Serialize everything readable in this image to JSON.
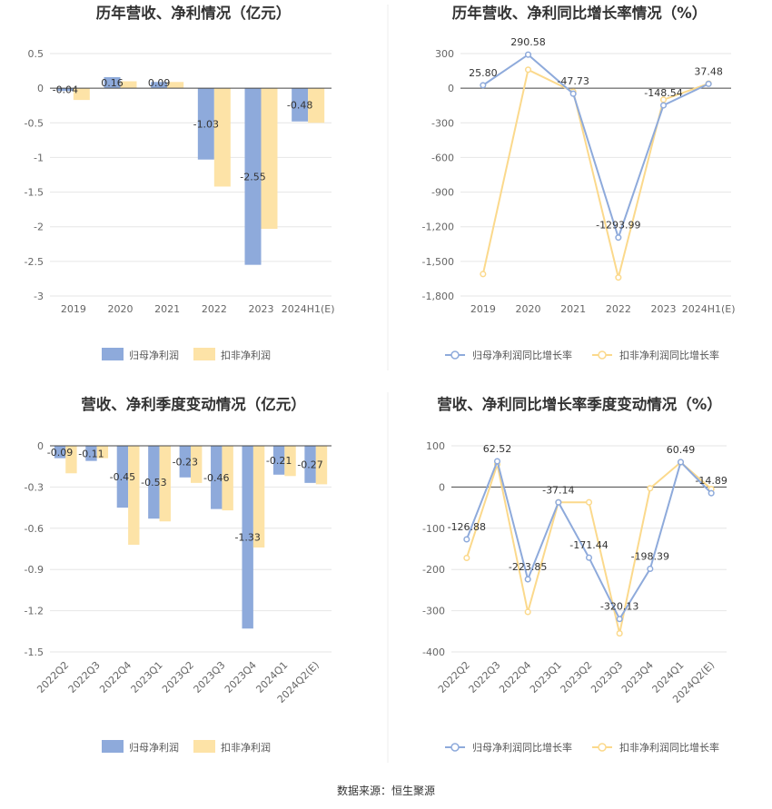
{
  "source": "数据来源：恒生聚源",
  "colors": {
    "primary": "#8eaadb",
    "secondary": "#fde3a7",
    "grid": "#e6e6e6",
    "axis": "#444444"
  },
  "chart_data": [
    {
      "type": "bar",
      "title": "历年营收、净利情况（亿元）",
      "categories": [
        "2019",
        "2020",
        "2021",
        "2022",
        "2023",
        "2024H1(E)"
      ],
      "ylim": [
        -3,
        0.5
      ],
      "yticks": [
        "0.5",
        "0",
        "-0.5",
        "-1",
        "-1.5",
        "-2",
        "-2.5",
        "-3"
      ],
      "ytick_values": [
        0.5,
        0,
        -0.5,
        -1,
        -1.5,
        -2,
        -2.5,
        -3
      ],
      "series": [
        {
          "name": "归母净利润",
          "values": [
            -0.04,
            0.16,
            0.09,
            -1.03,
            -2.55,
            -0.48
          ],
          "labels": [
            "-0.04",
            "0.16",
            "0.09",
            "-1.03",
            "-2.55",
            "-0.48"
          ]
        },
        {
          "name": "扣非净利润",
          "values": [
            -0.17,
            0.1,
            0.09,
            -1.42,
            -2.03,
            -0.5
          ]
        }
      ],
      "legend": "bottom"
    },
    {
      "type": "line",
      "title": "历年营收、净利同比增长率情况（%）",
      "categories": [
        "2019",
        "2020",
        "2021",
        "2022",
        "2023",
        "2024H1(E)"
      ],
      "ylim": [
        -1800,
        300
      ],
      "yticks": [
        "300",
        "0",
        "-300",
        "-600",
        "-900",
        "-1,200",
        "-1,500",
        "-1,800"
      ],
      "ytick_values": [
        300,
        0,
        -300,
        -600,
        -900,
        -1200,
        -1500,
        -1800
      ],
      "series": [
        {
          "name": "归母净利润同比增长率",
          "values": [
            25.8,
            290.58,
            -47.73,
            -1293.99,
            -148.54,
            37.48
          ],
          "labels": [
            "25.80",
            "290.58",
            "-47.73",
            "-1293.99",
            "-148.54",
            "37.48"
          ]
        },
        {
          "name": "扣非净利润同比增长率",
          "values": [
            -1610,
            160,
            -30,
            -1640,
            -100,
            40
          ]
        }
      ],
      "legend": "bottom"
    },
    {
      "type": "bar",
      "title": "营收、净利季度变动情况（亿元）",
      "categories": [
        "2022Q2",
        "2022Q3",
        "2022Q4",
        "2023Q1",
        "2023Q2",
        "2023Q3",
        "2023Q4",
        "2024Q1",
        "2024Q2(E)"
      ],
      "ylim": [
        -1.5,
        0
      ],
      "yticks": [
        "0",
        "-0.3",
        "-0.6",
        "-0.9",
        "-1.2",
        "-1.5"
      ],
      "ytick_values": [
        0,
        -0.3,
        -0.6,
        -0.9,
        -1.2,
        -1.5
      ],
      "series": [
        {
          "name": "归母净利润",
          "values": [
            -0.09,
            -0.11,
            -0.45,
            -0.53,
            -0.23,
            -0.46,
            -1.33,
            -0.21,
            -0.27
          ],
          "labels": [
            "-0.09",
            "-0.11",
            "-0.45",
            "-0.53",
            "-0.23",
            "-0.46",
            "-1.33",
            "-0.21",
            "-0.27"
          ]
        },
        {
          "name": "扣非净利润",
          "values": [
            -0.2,
            -0.09,
            -0.72,
            -0.55,
            -0.27,
            -0.47,
            -0.74,
            -0.22,
            -0.28
          ]
        }
      ],
      "legend": "bottom"
    },
    {
      "type": "line",
      "title": "营收、净利同比增长率季度变动情况（%）",
      "categories": [
        "2022Q2",
        "2022Q3",
        "2022Q4",
        "2023Q1",
        "2023Q2",
        "2023Q3",
        "2023Q4",
        "2024Q1",
        "2024Q2(E)"
      ],
      "ylim": [
        -400,
        100
      ],
      "yticks": [
        "100",
        "0",
        "-100",
        "-200",
        "-300",
        "-400"
      ],
      "ytick_values": [
        100,
        0,
        -100,
        -200,
        -300,
        -400
      ],
      "series": [
        {
          "name": "归母净利润同比增长率",
          "values": [
            -126.88,
            62.52,
            -223.85,
            -37.14,
            -171.44,
            -320.13,
            -198.39,
            60.49,
            -14.89
          ],
          "labels": [
            "-126.88",
            "62.52",
            "-223.85",
            "-37.14",
            "-171.44",
            "-320.13",
            "-198.39",
            "60.49",
            "-14.89"
          ]
        },
        {
          "name": "扣非净利润同比增长率",
          "values": [
            -172,
            55,
            -303,
            -37,
            -37,
            -355,
            -3,
            60,
            -5
          ]
        }
      ],
      "legend": "bottom"
    }
  ]
}
